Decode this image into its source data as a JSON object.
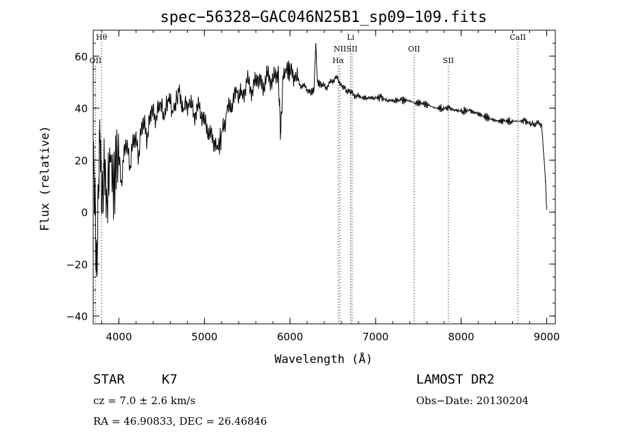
{
  "chart_data": {
    "type": "line",
    "title": "spec−56328−GAC046N25B1_sp09−109.fits",
    "xlabel": "Wavelength (Å)",
    "ylabel": "Flux (relative)",
    "xlim": [
      3700,
      9100
    ],
    "ylim": [
      -43,
      70
    ],
    "x_ticks": [
      4000,
      5000,
      6000,
      7000,
      8000,
      9000
    ],
    "y_ticks": [
      -40,
      -20,
      0,
      20,
      40,
      60
    ],
    "y_tick_labels": [
      "−40",
      "−20",
      "0",
      "20",
      "40",
      "60"
    ],
    "grid": false,
    "series": [
      {
        "x": [
          3700,
          3720,
          3740,
          3760,
          3780,
          3800,
          3830,
          3860,
          3900,
          3940,
          3980,
          4030,
          4080,
          4130,
          4180,
          4230,
          4280,
          4330,
          4380,
          4430,
          4480,
          4530,
          4580,
          4630,
          4700,
          4760,
          4820,
          4880,
          4940,
          5000,
          5060,
          5120,
          5160,
          5200,
          5260,
          5320,
          5380,
          5440,
          5500,
          5560,
          5620,
          5680,
          5740,
          5800,
          5860,
          5890,
          5920,
          5960,
          6000,
          6060,
          6120,
          6180,
          6240,
          6280,
          6300,
          6320,
          6360,
          6420,
          6480,
          6540,
          6600,
          6650,
          6700,
          6760,
          6820,
          6900,
          6980,
          7060,
          7140,
          7220,
          7300,
          7380,
          7460,
          7540,
          7620,
          7700,
          7780,
          7860,
          7940,
          8020,
          8100,
          8180,
          8260,
          8340,
          8420,
          8500,
          8580,
          8660,
          8740,
          8820,
          8880,
          8940,
          8980,
          9000
        ],
        "y": [
          20,
          5,
          -25,
          10,
          30,
          2,
          18,
          5,
          22,
          8,
          25,
          12,
          28,
          18,
          30,
          22,
          36,
          28,
          40,
          35,
          42,
          36,
          44,
          38,
          46,
          40,
          42,
          38,
          40,
          35,
          30,
          27,
          24,
          30,
          38,
          42,
          46,
          45,
          50,
          47,
          52,
          48,
          53,
          50,
          55,
          30,
          52,
          55,
          54,
          52,
          49,
          48,
          46,
          47,
          65,
          50,
          49,
          48,
          50,
          52,
          49,
          47,
          46,
          45,
          44,
          44,
          44,
          44,
          43,
          43,
          43,
          43,
          42,
          42,
          41,
          40,
          40,
          40,
          39,
          39,
          39,
          38,
          37,
          36,
          35,
          35,
          35,
          35,
          35,
          34,
          34,
          34,
          15,
          1
        ]
      }
    ],
    "lines": [
      {
        "label": "Hθ",
        "x": 3797
      },
      {
        "label": "OII",
        "x": 3727
      },
      {
        "label": "Hα",
        "x": 6563
      },
      {
        "label": "NII",
        "x": 6584
      },
      {
        "label": "SII",
        "x": 6724
      },
      {
        "label": "Li",
        "x": 6708
      },
      {
        "label": "OII",
        "x": 7450
      },
      {
        "label": "SII",
        "x": 7850
      },
      {
        "label": "CaII",
        "x": 8662
      }
    ]
  },
  "info": {
    "class": "STAR",
    "subclass": "K7",
    "cz": "cz = 7.0 ± 2.6 km/s",
    "coords": "RA =   46.90833, DEC =   26.46846",
    "survey": "LAMOST DR2",
    "obs_date": "Obs−Date: 20130204"
  }
}
